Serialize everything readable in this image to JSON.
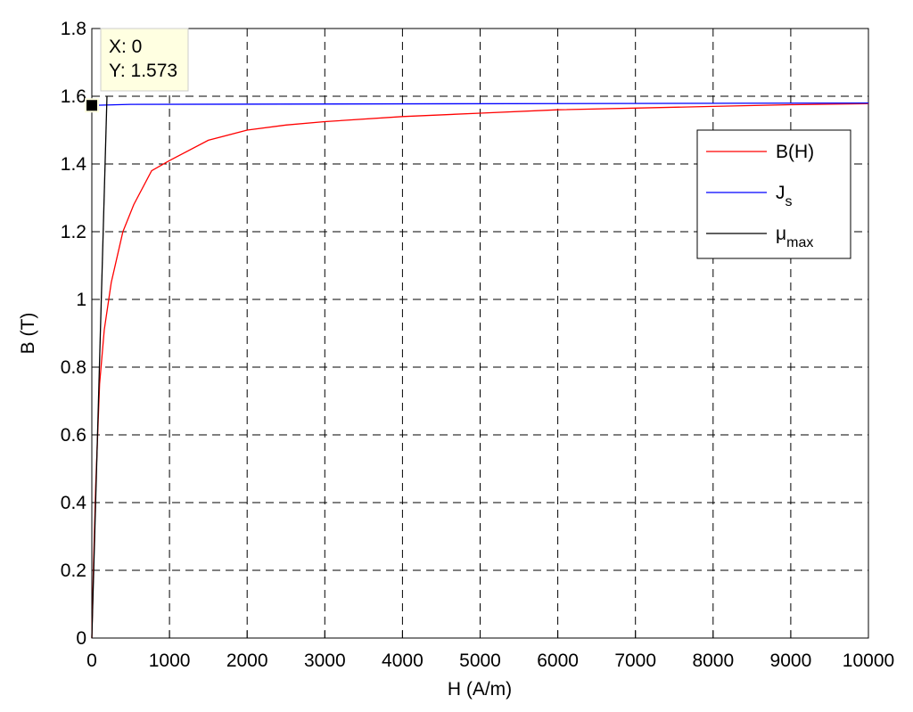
{
  "chart_data": {
    "type": "line",
    "xlabel": "H (A/m)",
    "ylabel": "B (T)",
    "xlim": [
      0,
      10000
    ],
    "xticks": [
      0,
      1000,
      2000,
      3000,
      4000,
      5000,
      6000,
      7000,
      8000,
      9000,
      10000
    ],
    "ylim": [
      0,
      1.8
    ],
    "yticks": [
      0,
      0.2,
      0.4,
      0.6,
      0.8,
      1,
      1.2,
      1.4,
      1.6,
      1.8
    ],
    "grid": true,
    "legend": "upper right",
    "series": [
      {
        "name": "B(H)",
        "color": "#ff0000",
        "x": [
          0,
          20,
          50,
          100,
          160,
          250,
          400,
          540,
          770,
          1000,
          1500,
          2000,
          2500,
          3000,
          4000,
          5000,
          6000,
          7000,
          8000,
          9000,
          10000
        ],
        "values": [
          0,
          0.2,
          0.45,
          0.75,
          0.91,
          1.05,
          1.2,
          1.28,
          1.38,
          1.41,
          1.47,
          1.5,
          1.515,
          1.525,
          1.54,
          1.55,
          1.56,
          1.565,
          1.57,
          1.575,
          1.578
        ]
      },
      {
        "name": "J",
        "subscript": "s",
        "color": "#0000ff",
        "x": [
          0,
          500,
          10000
        ],
        "values": [
          1.573,
          1.576,
          1.58
        ]
      },
      {
        "name": "μ",
        "subscript": "max",
        "color": "#000000",
        "x": [
          0,
          195
        ],
        "values": [
          0,
          1.6
        ]
      }
    ],
    "datatip": {
      "x": 0,
      "y": 1.573,
      "lines": [
        "X: 0",
        "Y: 1.573"
      ]
    }
  }
}
